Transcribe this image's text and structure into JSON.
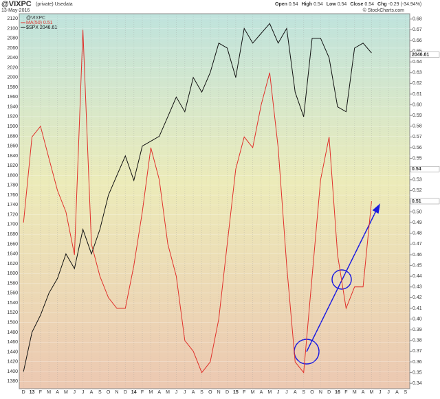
{
  "chart_data": {
    "type": "line",
    "symbol": "@VIXPC",
    "subtitle": "(private) Usedata",
    "date": "13-May-2016",
    "ohlc": [
      {
        "label": "Open",
        "value": "0.54"
      },
      {
        "label": "High",
        "value": "0.54"
      },
      {
        "label": "Low",
        "value": "0.54"
      },
      {
        "label": "Close",
        "value": "0.54"
      },
      {
        "label": "Chg",
        "value": "-0.29 (-34.94%)"
      }
    ],
    "credit": "© StockCharts.com",
    "legend_title": "@VIXPC",
    "categories": [
      "D",
      "13",
      "F",
      "M",
      "A",
      "M",
      "J",
      "J",
      "A",
      "S",
      "O",
      "N",
      "D",
      "14",
      "F",
      "M",
      "A",
      "M",
      "J",
      "J",
      "A",
      "S",
      "O",
      "N",
      "D",
      "15",
      "F",
      "M",
      "A",
      "M",
      "J",
      "J",
      "A",
      "S",
      "O",
      "N",
      "D",
      "16",
      "F",
      "M",
      "A",
      "M",
      "J",
      "J",
      "A",
      "S"
    ],
    "series": [
      {
        "name": "MA(50) 0.51",
        "color": "#e0302a",
        "axis": "y2",
        "values": [
          0.49,
          0.57,
          0.58,
          0.55,
          0.52,
          0.5,
          0.46,
          0.67,
          0.47,
          0.44,
          0.42,
          0.41,
          0.41,
          0.45,
          0.5,
          0.56,
          0.53,
          0.47,
          0.44,
          0.38,
          0.37,
          0.35,
          0.36,
          0.4,
          0.47,
          0.54,
          0.57,
          0.56,
          0.6,
          0.63,
          0.56,
          0.45,
          0.36,
          0.35,
          0.44,
          0.53,
          0.57,
          0.46,
          0.41,
          0.43,
          0.43,
          0.51,
          null,
          null,
          null,
          null
        ]
      },
      {
        "name": "$SPX 2046.61",
        "color": "#111111",
        "axis": "y",
        "values": [
          1400,
          1480,
          1515,
          1560,
          1590,
          1640,
          1610,
          1690,
          1640,
          1690,
          1760,
          1800,
          1840,
          1790,
          1860,
          1870,
          1880,
          1920,
          1960,
          1930,
          2000,
          1970,
          2010,
          2070,
          2060,
          2000,
          2100,
          2070,
          2090,
          2110,
          2070,
          2100,
          1970,
          1920,
          2080,
          2080,
          2040,
          1940,
          1930,
          2060,
          2070,
          2050,
          null,
          null,
          null,
          null
        ]
      }
    ],
    "last_labels": [
      {
        "value": "2046.61",
        "axis": "y",
        "at": 2046.61
      },
      {
        "value": "0.54",
        "axis": "y2",
        "at": 0.54
      },
      {
        "value": "0.51",
        "axis": "y2",
        "at": 0.51
      }
    ],
    "ylim": [
      1365,
      2130
    ],
    "yticks": [
      1380,
      1400,
      1420,
      1440,
      1460,
      1480,
      1500,
      1520,
      1540,
      1560,
      1580,
      1600,
      1620,
      1640,
      1660,
      1680,
      1700,
      1720,
      1740,
      1760,
      1780,
      1800,
      1820,
      1840,
      1860,
      1880,
      1900,
      1920,
      1940,
      1960,
      1980,
      2000,
      2020,
      2040,
      2060,
      2080,
      2100,
      2120
    ],
    "y2lim": [
      0.335,
      0.685
    ],
    "y2ticks": [
      0.34,
      0.35,
      0.36,
      0.37,
      0.38,
      0.39,
      {
        "value": 0.4,
        "label": "0.40"
      },
      0.41,
      0.42,
      0.43,
      0.44,
      0.45,
      0.46,
      0.47,
      0.48,
      0.49,
      {
        "value": 0.5,
        "label": "0.50"
      },
      0.51,
      0.52,
      0.53,
      0.54,
      0.55,
      0.56,
      0.57,
      0.58,
      0.59,
      {
        "value": 0.6,
        "label": "0.60"
      },
      0.61,
      0.62,
      0.63,
      0.64,
      0.65,
      0.66,
      0.67,
      0.68
    ],
    "grid": true
  }
}
